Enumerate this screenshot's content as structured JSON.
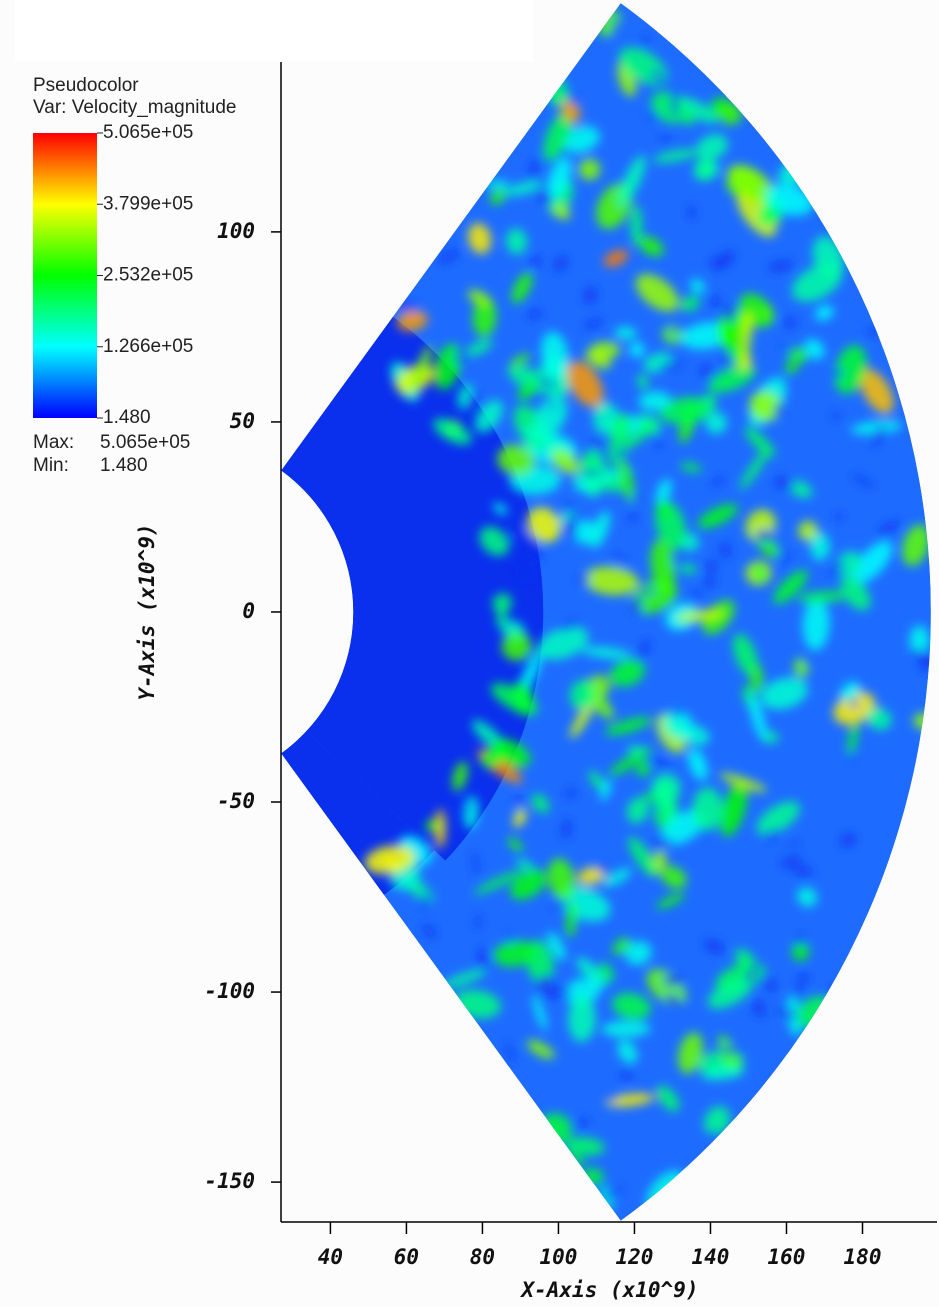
{
  "chart_data": {
    "type": "pseudocolor",
    "legend_title": "Pseudocolor",
    "variable": "Var: Velocity_magnitude",
    "colormap": [
      "#0000ff",
      "#00ffff",
      "#00ff00",
      "#ffff00",
      "#ff0000"
    ],
    "colorbar_ticks": [
      {
        "value": 506500,
        "label": "5.065e+05"
      },
      {
        "value": 379900,
        "label": "3.799e+05"
      },
      {
        "value": 253200,
        "label": "2.532e+05"
      },
      {
        "value": 126600,
        "label": "1.266e+05"
      },
      {
        "value": 1.48,
        "label": "1.480"
      }
    ],
    "max_label": "Max:",
    "max": {
      "value": 506500,
      "label": "5.065e+05"
    },
    "min_label": "Min:",
    "min": {
      "value": 1.48,
      "label": "1.480"
    },
    "xlabel": "X-Axis (x10^9)",
    "ylabel": "Y-Axis (x10^9)",
    "xlim": [
      27,
      199.6
    ],
    "ylim": [
      -160.5,
      144.7
    ],
    "xticks": [
      40,
      60,
      80,
      100,
      120,
      140,
      160,
      180
    ],
    "yticks": [
      -150,
      -100,
      -50,
      0,
      50,
      100
    ]
  }
}
